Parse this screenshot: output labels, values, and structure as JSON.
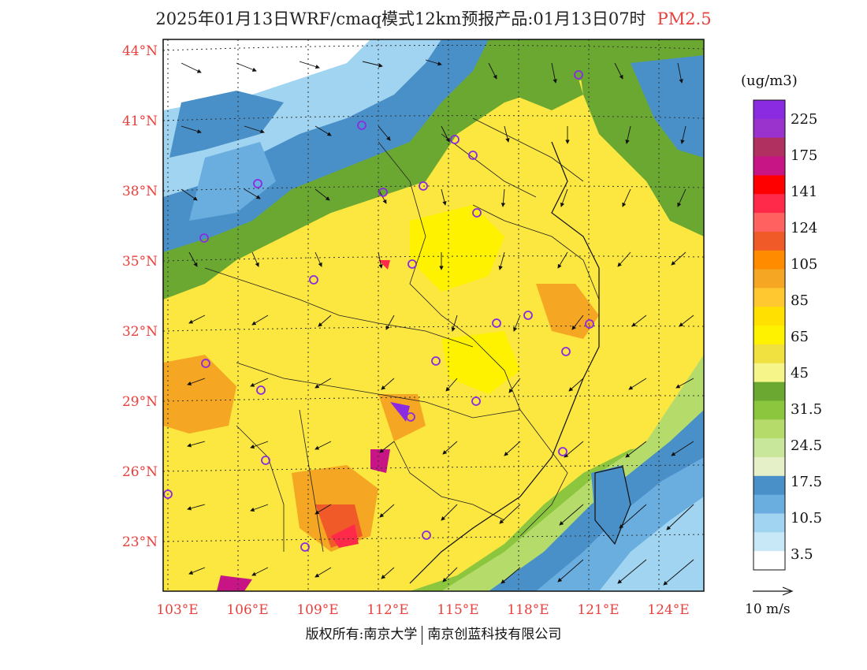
{
  "title": {
    "text": "2025年01月13日WRF/cmaq模式12km预报产品:01月13日07时",
    "variable": "PM2.5",
    "variable_color": "#e8403c"
  },
  "axes": {
    "lat_labels": [
      "44°N",
      "41°N",
      "38°N",
      "35°N",
      "32°N",
      "29°N",
      "26°N",
      "23°N"
    ],
    "lon_labels": [
      "103°E",
      "106°E",
      "109°E",
      "112°E",
      "115°E",
      "118°E",
      "121°E",
      "124°E"
    ],
    "label_color": "#e8403c"
  },
  "colorbar": {
    "unit": "(ug/m3)",
    "tick_labels": [
      "225",
      "175",
      "141",
      "124",
      "105",
      "85",
      "65",
      "45",
      "31.5",
      "24.5",
      "17.5",
      "10.5",
      "3.5"
    ],
    "colors_top_to_bottom": [
      "#8a2be2",
      "#9a32cd",
      "#b03060",
      "#c71585",
      "#ff0000",
      "#ff2a4a",
      "#ff6060",
      "#f05a28",
      "#ff8c00",
      "#f5a623",
      "#ffc830",
      "#ffe000",
      "#fff200",
      "#f0e040",
      "#f5f58a",
      "#6aa832",
      "#8cc63f",
      "#b5dc6a",
      "#c9e79a",
      "#e6f0c8",
      "#4a90c8",
      "#6aaee0",
      "#a0d4f0",
      "#c8e8f8",
      "#ffffff"
    ]
  },
  "wind_legend": {
    "label": "10 m/s"
  },
  "footer": {
    "left": "版权所有:南京大学",
    "right": "南京创蓝科技有限公司"
  },
  "map_features": {
    "city_marker": "circle-marker",
    "wind_vectors": "arrow-icon"
  }
}
